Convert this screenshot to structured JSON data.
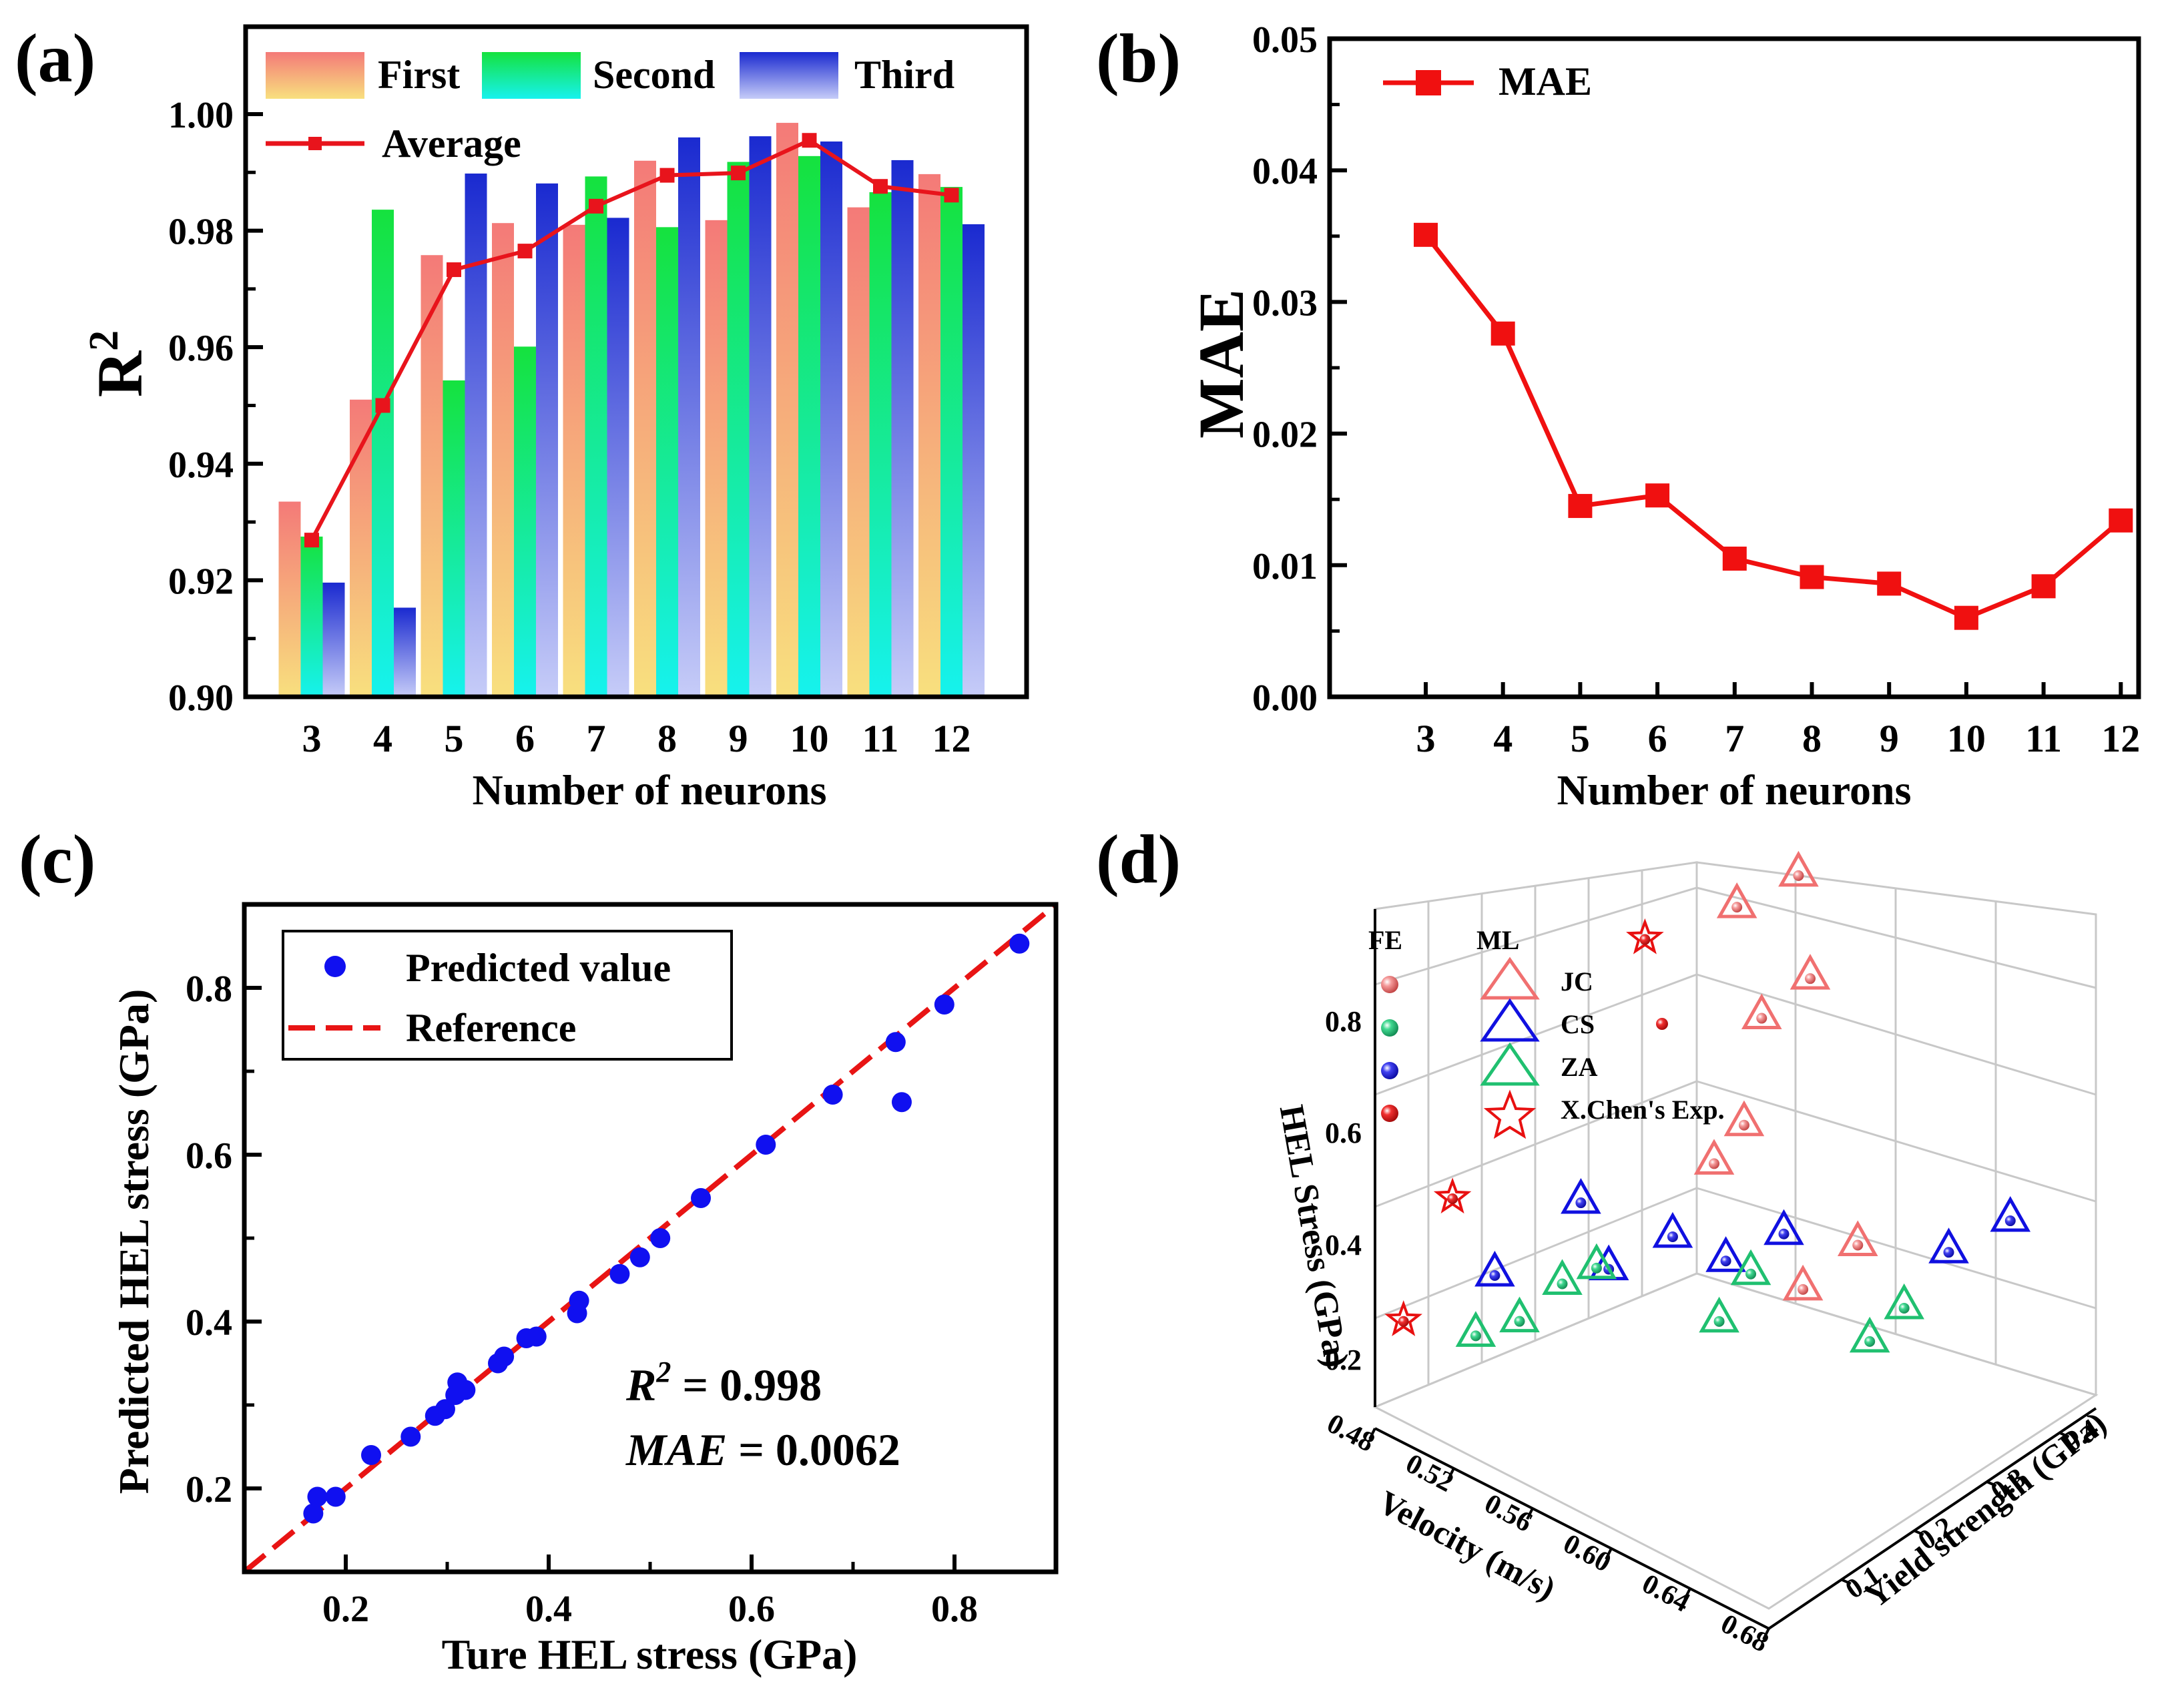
{
  "figure": {
    "panel_labels": [
      "(a)",
      "(b)",
      "(c)",
      "(d)"
    ]
  },
  "colors": {
    "first_top": "#f47a78",
    "first_bottom": "#f8e07e",
    "second_top": "#15e23e",
    "second_bottom": "#16f2ee",
    "third_top": "#1a2ad0",
    "third_bottom": "#c6ccf8",
    "average": "#e8141c",
    "mae": "#f01010",
    "predicted": "#1010f0",
    "reference": "#e81414",
    "jc": "#f07070",
    "cs": "#1010e0",
    "za": "#20c070",
    "exp": "#e81010"
  },
  "chart_data": [
    {
      "id": "a",
      "type": "bar",
      "title": "",
      "xlabel": "Number of neurons",
      "ylabel": "R",
      "ylabel_sup": "2",
      "categories": [
        "3",
        "4",
        "5",
        "6",
        "7",
        "8",
        "9",
        "10",
        "11",
        "12"
      ],
      "series": [
        {
          "name": "First",
          "values": [
            0.9335,
            0.951,
            0.9758,
            0.9813,
            0.981,
            0.992,
            0.9818,
            0.9985,
            0.984,
            0.9897
          ]
        },
        {
          "name": "Second",
          "values": [
            0.9275,
            0.9836,
            0.9543,
            0.9601,
            0.9893,
            0.9806,
            0.9918,
            0.9928,
            0.9866,
            0.9875
          ]
        },
        {
          "name": "Third",
          "values": [
            0.9196,
            0.9153,
            0.9898,
            0.9881,
            0.9822,
            0.996,
            0.9962,
            0.9953,
            0.9921,
            0.9811
          ]
        }
      ],
      "line": {
        "name": "Average",
        "values": [
          0.9269,
          0.95,
          0.9733,
          0.9765,
          0.9842,
          0.9895,
          0.9899,
          0.9955,
          0.9876,
          0.9861
        ]
      },
      "ylim": [
        0.9,
        1.015
      ],
      "yticks": [
        "0.90",
        "0.92",
        "0.94",
        "0.96",
        "0.98",
        "1.00"
      ],
      "ytick_values": [
        0.9,
        0.92,
        0.94,
        0.96,
        0.98,
        1.0
      ]
    },
    {
      "id": "b",
      "type": "line",
      "xlabel": "Number of neurons",
      "ylabel": "MAE",
      "categories": [
        "3",
        "4",
        "5",
        "6",
        "7",
        "8",
        "9",
        "10",
        "11",
        "12"
      ],
      "series": [
        {
          "name": "MAE",
          "values": [
            0.0351,
            0.0276,
            0.0145,
            0.0153,
            0.0105,
            0.0091,
            0.0086,
            0.006,
            0.0084,
            0.0134
          ]
        }
      ],
      "ylim": [
        0,
        0.05
      ],
      "yticks": [
        "0.00",
        "0.01",
        "0.02",
        "0.03",
        "0.04",
        "0.05"
      ],
      "ytick_values": [
        0,
        0.01,
        0.02,
        0.03,
        0.04,
        0.05
      ]
    },
    {
      "id": "c",
      "type": "scatter",
      "xlabel": "Ture HEL stress (GPa)",
      "ylabel": "Predicted HEL stress (GPa)",
      "xlim": [
        0.1,
        0.9
      ],
      "ylim": [
        0.1,
        0.9
      ],
      "xticks": [
        "0.2",
        "0.4",
        "0.6",
        "0.8"
      ],
      "xtick_values": [
        0.2,
        0.4,
        0.6,
        0.8
      ],
      "yticks": [
        "0.2",
        "0.4",
        "0.6",
        "0.8"
      ],
      "ytick_values": [
        0.2,
        0.4,
        0.6,
        0.8
      ],
      "legend": [
        "Predicted value",
        "Reference"
      ],
      "points": [
        [
          0.168,
          0.17
        ],
        [
          0.172,
          0.19
        ],
        [
          0.19,
          0.19
        ],
        [
          0.225,
          0.24
        ],
        [
          0.264,
          0.262
        ],
        [
          0.288,
          0.287
        ],
        [
          0.298,
          0.295
        ],
        [
          0.308,
          0.312
        ],
        [
          0.31,
          0.327
        ],
        [
          0.318,
          0.318
        ],
        [
          0.35,
          0.35
        ],
        [
          0.356,
          0.358
        ],
        [
          0.378,
          0.38
        ],
        [
          0.388,
          0.382
        ],
        [
          0.428,
          0.41
        ],
        [
          0.43,
          0.425
        ],
        [
          0.47,
          0.457
        ],
        [
          0.49,
          0.477
        ],
        [
          0.51,
          0.5
        ],
        [
          0.55,
          0.548
        ],
        [
          0.614,
          0.612
        ],
        [
          0.68,
          0.672
        ],
        [
          0.742,
          0.735
        ],
        [
          0.748,
          0.663
        ],
        [
          0.79,
          0.78
        ],
        [
          0.864,
          0.853
        ]
      ],
      "reference": [
        [
          0.1,
          0.1
        ],
        [
          0.9,
          0.9
        ]
      ],
      "annotations": [
        {
          "label": "R",
          "sup": "2",
          "text": " = 0.998"
        },
        {
          "label": "MAE",
          "text": " = 0.0062"
        }
      ]
    },
    {
      "id": "d",
      "type": "scatter3d",
      "zlabel": "HEL Stress (GPa)",
      "xlabel": "Velocity (m/s)",
      "ylabel": "Yield strength (GPa)",
      "zticks": [
        "0.2",
        "0.4",
        "0.6",
        "0.8"
      ],
      "xticks": [
        "0.48",
        "0.52",
        "0.56",
        "0.60",
        "0.64",
        "0.68"
      ],
      "yticks": [
        "0.1",
        "0.2",
        "0.3",
        "0.4"
      ],
      "legend_headers": [
        "FE",
        "ML"
      ],
      "legend_items": [
        "JC",
        "CS",
        "ZA",
        "X.Chen's Exp."
      ],
      "groups": [
        {
          "name": "JC",
          "points": [
            [
              0.578,
              0.33,
              0.31
            ],
            [
              0.595,
              0.36,
              0.4
            ],
            [
              0.56,
              0.255,
              0.545
            ],
            [
              0.568,
              0.275,
              0.615
            ],
            [
              0.548,
              0.355,
              0.72
            ],
            [
              0.56,
              0.39,
              0.79
            ],
            [
              0.53,
              0.37,
              0.875
            ],
            [
              0.545,
              0.415,
              0.93
            ]
          ]
        },
        {
          "name": "CS",
          "points": [
            [
              0.492,
              0.135,
              0.3
            ],
            [
              0.505,
              0.22,
              0.4
            ],
            [
              0.53,
              0.19,
              0.345
            ],
            [
              0.548,
              0.23,
              0.41
            ],
            [
              0.575,
              0.23,
              0.415
            ],
            [
              0.59,
              0.27,
              0.465
            ],
            [
              0.643,
              0.355,
              0.475
            ],
            [
              0.658,
              0.4,
              0.53
            ]
          ]
        },
        {
          "name": "ZA",
          "points": [
            [
              0.495,
              0.1,
              0.22
            ],
            [
              0.51,
              0.12,
              0.26
            ],
            [
              0.51,
              0.18,
              0.29
            ],
            [
              0.522,
              0.195,
              0.33
            ],
            [
              0.568,
              0.24,
              0.29
            ],
            [
              0.566,
              0.29,
              0.34
            ],
            [
              0.63,
              0.28,
              0.34
            ],
            [
              0.633,
              0.32,
              0.38
            ]
          ]
        },
        {
          "name": "X.Chen's Exp.",
          "points": [
            [
              0.48,
              0.04,
              0.255
            ],
            [
              0.485,
              0.095,
              0.447
            ],
            [
              0.505,
              0.31,
              0.81
            ]
          ]
        }
      ]
    }
  ]
}
